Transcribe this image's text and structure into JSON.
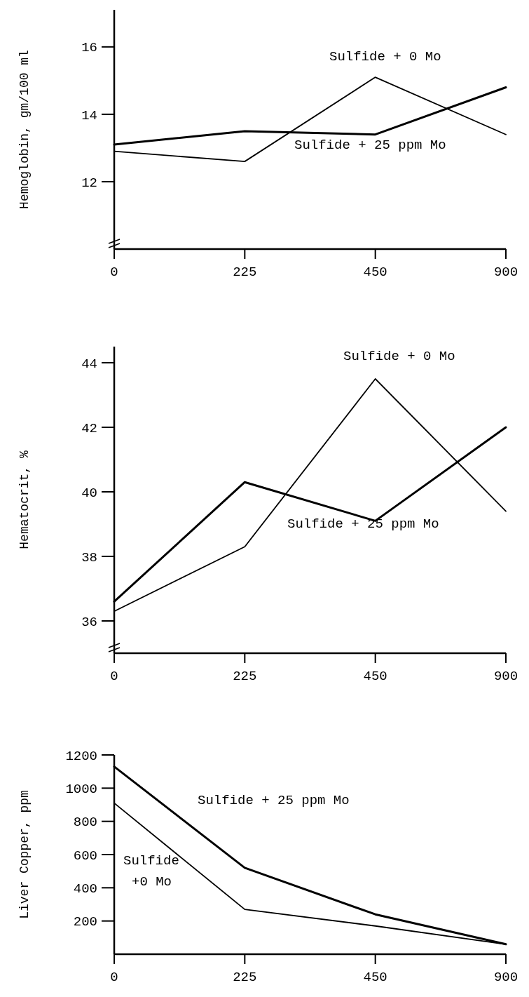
{
  "chart_data": [
    {
      "type": "line",
      "ylabel": "Hemoglobin, gm/100 ml",
      "categories": [
        "0",
        "225",
        "450",
        "900"
      ],
      "ylim": [
        10,
        17.1
      ],
      "yticks": [
        12,
        14,
        16
      ],
      "series": [
        {
          "name": "Sulfide + 0 Mo",
          "color": "#000000",
          "values": [
            12.9,
            12.6,
            15.1,
            13.4
          ]
        },
        {
          "name": "Sulfide + 25 ppm Mo",
          "color": "#000000",
          "values": [
            13.1,
            13.5,
            13.4,
            14.8
          ]
        }
      ]
    },
    {
      "type": "line",
      "ylabel": "Hematocrit, %",
      "categories": [
        "0",
        "225",
        "450",
        "900"
      ],
      "ylim": [
        35,
        44.5
      ],
      "yticks": [
        36,
        38,
        40,
        42,
        44
      ],
      "series": [
        {
          "name": "Sulfide + 0 Mo",
          "color": "#000000",
          "values": [
            36.3,
            38.3,
            43.5,
            39.4
          ]
        },
        {
          "name": "Sulfide + 25 ppm Mo",
          "color": "#000000",
          "values": [
            36.6,
            40.3,
            39.1,
            42.0
          ]
        }
      ]
    },
    {
      "type": "line",
      "ylabel": "Liver Copper, ppm",
      "categories": [
        "0",
        "225",
        "450",
        "900"
      ],
      "ylim": [
        0,
        1200
      ],
      "yticks": [
        200,
        400,
        600,
        800,
        1000,
        1200
      ],
      "series": [
        {
          "name": "Sulfide\n+0 Mo",
          "color": "#000000",
          "values": [
            910,
            270,
            170,
            60
          ]
        },
        {
          "name": "Sulfide + 25 ppm Mo",
          "color": "#000000",
          "values": [
            1130,
            520,
            240,
            60
          ]
        }
      ]
    }
  ]
}
